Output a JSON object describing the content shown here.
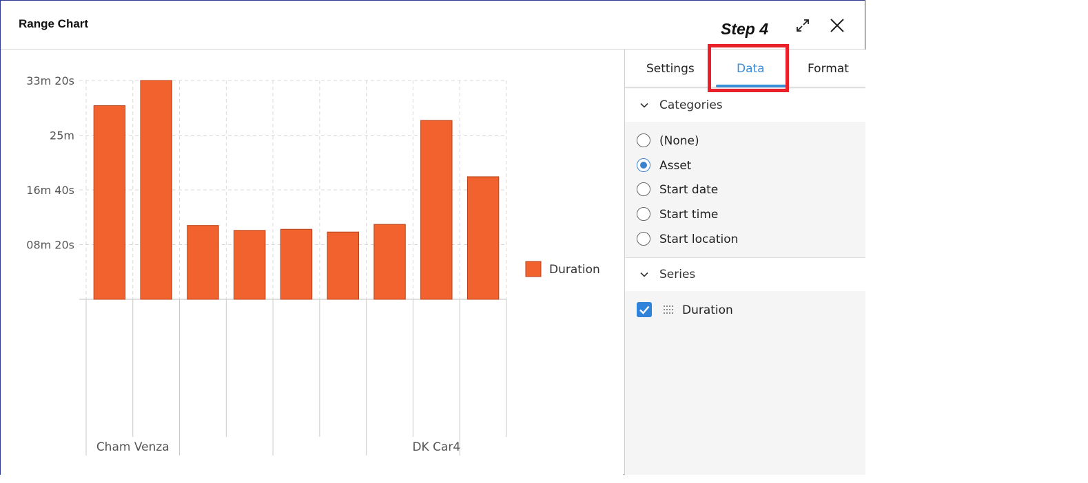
{
  "dialog": {
    "title": "Range Chart",
    "annotation": "Step 4",
    "expand_icon": "expand-icon",
    "close_icon": "close-icon"
  },
  "tabs": [
    {
      "label": "Settings",
      "active": false
    },
    {
      "label": "Data",
      "active": true
    },
    {
      "label": "Format",
      "active": false
    }
  ],
  "categories": {
    "header": "Categories",
    "options": [
      {
        "label": "(None)",
        "selected": false
      },
      {
        "label": "Asset",
        "selected": true
      },
      {
        "label": "Start date",
        "selected": false
      },
      {
        "label": "Start time",
        "selected": false
      },
      {
        "label": "Start location",
        "selected": false
      }
    ]
  },
  "series": {
    "header": "Series",
    "items": [
      {
        "label": "Duration",
        "checked": true
      }
    ]
  },
  "colors": {
    "bar": "#f2622e",
    "bar_border": "#b5421a",
    "accent": "#3b8ed8",
    "highlight": "#e8202a"
  },
  "chart_data": {
    "type": "bar",
    "title": "",
    "categories": [
      "Cham Venza",
      "",
      "",
      "",
      "",
      "",
      "",
      "DK Car4",
      ""
    ],
    "tick_labels": [
      "",
      "08m 20s",
      "16m 40s",
      "25m",
      "33m 20s"
    ],
    "ylim_seconds": [
      0,
      2000
    ],
    "series": [
      {
        "name": "Duration",
        "values_seconds": [
          1770,
          2000,
          675,
          630,
          640,
          615,
          685,
          1635,
          1120
        ]
      }
    ],
    "legend": {
      "position": "right",
      "label": "Duration"
    },
    "grid": true
  }
}
